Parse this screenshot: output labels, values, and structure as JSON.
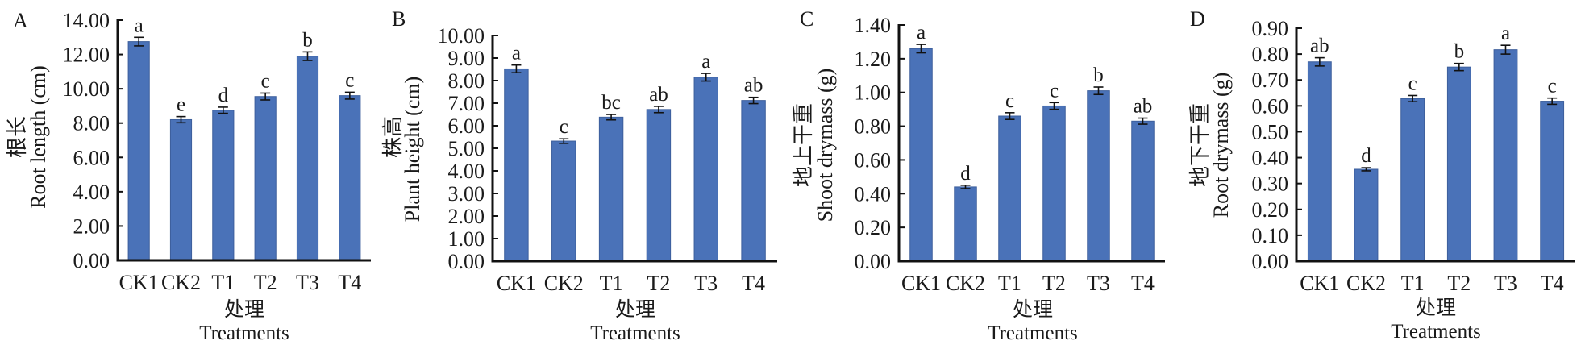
{
  "bar_color": "#4A72B8",
  "chart_data": [
    {
      "type": "bar",
      "panel": "A",
      "title": "",
      "ylabel_cn": "根长",
      "ylabel": "Root length (cm)",
      "xlabel_cn": "处理",
      "xlabel": "Treatments",
      "categories": [
        "CK1",
        "CK2",
        "T1",
        "T2",
        "T3",
        "T4"
      ],
      "values": [
        12.75,
        8.2,
        8.75,
        9.55,
        11.9,
        9.6
      ],
      "errors": [
        0.25,
        0.18,
        0.18,
        0.2,
        0.25,
        0.2
      ],
      "significance": [
        "a",
        "e",
        "d",
        "c",
        "b",
        "c"
      ],
      "ylim": [
        0,
        14
      ],
      "yticks": [
        "0.00",
        "2.00",
        "4.00",
        "6.00",
        "8.00",
        "10.00",
        "12.00",
        "14.00"
      ],
      "grid": false
    },
    {
      "type": "bar",
      "panel": "B",
      "title": "",
      "ylabel_cn": "株高",
      "ylabel": "Plant height (cm)",
      "xlabel_cn": "处理",
      "xlabel": "Treatments",
      "categories": [
        "CK1",
        "CK2",
        "T1",
        "T2",
        "T3",
        "T4"
      ],
      "values": [
        8.52,
        5.32,
        6.38,
        6.72,
        8.15,
        7.12
      ],
      "errors": [
        0.17,
        0.1,
        0.12,
        0.14,
        0.17,
        0.14
      ],
      "significance": [
        "a",
        "c",
        "bc",
        "ab",
        "a",
        "ab"
      ],
      "ylim": [
        0,
        10
      ],
      "yticks": [
        "0.00",
        "1.00",
        "2.00",
        "3.00",
        "4.00",
        "5.00",
        "6.00",
        "7.00",
        "8.00",
        "9.00",
        "10.00"
      ],
      "grid": false
    },
    {
      "type": "bar",
      "panel": "C",
      "title": "",
      "ylabel_cn": "地上干重",
      "ylabel": "Shoot drymass (g)",
      "xlabel_cn": "处理",
      "xlabel": "Treatments",
      "categories": [
        "CK1",
        "CK2",
        "T1",
        "T2",
        "T3",
        "T4"
      ],
      "values": [
        1.26,
        0.44,
        0.86,
        0.92,
        1.01,
        0.83
      ],
      "errors": [
        0.025,
        0.01,
        0.02,
        0.02,
        0.022,
        0.018
      ],
      "significance": [
        "a",
        "d",
        "c",
        "c",
        "b",
        "ab"
      ],
      "ylim": [
        0,
        1.4
      ],
      "yticks": [
        "0.00",
        "0.20",
        "0.40",
        "0.60",
        "0.80",
        "1.00",
        "1.20",
        "1.40"
      ],
      "grid": false
    },
    {
      "type": "bar",
      "panel": "D",
      "title": "",
      "ylabel_cn": "地下干重",
      "ylabel": "Root drymass (g)",
      "xlabel_cn": "处理",
      "xlabel": "Treatments",
      "categories": [
        "CK1",
        "CK2",
        "T1",
        "T2",
        "T3",
        "T4"
      ],
      "values": [
        0.77,
        0.355,
        0.628,
        0.75,
        0.817,
        0.618
      ],
      "errors": [
        0.016,
        0.006,
        0.012,
        0.014,
        0.017,
        0.012
      ],
      "significance": [
        "ab",
        "d",
        "c",
        "b",
        "a",
        "c"
      ],
      "ylim": [
        0,
        0.9
      ],
      "yticks": [
        "0.00",
        "0.10",
        "0.20",
        "0.30",
        "0.40",
        "0.50",
        "0.60",
        "0.70",
        "0.80",
        "0.90"
      ],
      "grid": false
    }
  ]
}
